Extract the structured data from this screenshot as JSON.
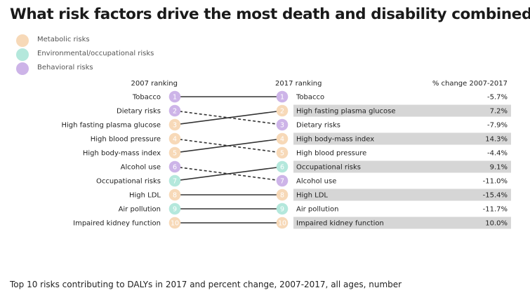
{
  "title": "What risk factors drive the most death and disability combined?",
  "subtitle": "Top 10 risks contributing to DALYs in 2017 and percent change, 2007-2017, all ages, number",
  "legend": [
    {
      "label": "Metabolic risks",
      "category": "metabolic"
    },
    {
      "label": "Environmental/occupational risks",
      "category": "environmental"
    },
    {
      "label": "Behavioral risks",
      "category": "behavioral"
    }
  ],
  "colors": {
    "metabolic": "#f7d9b8",
    "environmental": "#b4e8dc",
    "behavioral": "#cdb4e8",
    "highlight": "#d6d6d6",
    "line": "#333333"
  },
  "chart_data": {
    "type": "slope",
    "column_headers": {
      "left": "2007 ranking",
      "right": "2017 ranking",
      "change": "% change 2007-2017"
    },
    "left_ranking": [
      {
        "rank": 1,
        "label": "Tobacco",
        "category": "behavioral"
      },
      {
        "rank": 2,
        "label": "Dietary risks",
        "category": "behavioral"
      },
      {
        "rank": 3,
        "label": "High fasting plasma glucose",
        "category": "metabolic"
      },
      {
        "rank": 4,
        "label": "High blood pressure",
        "category": "metabolic"
      },
      {
        "rank": 5,
        "label": "High body-mass index",
        "category": "metabolic"
      },
      {
        "rank": 6,
        "label": "Alcohol use",
        "category": "behavioral"
      },
      {
        "rank": 7,
        "label": "Occupational risks",
        "category": "environmental"
      },
      {
        "rank": 8,
        "label": "High LDL",
        "category": "metabolic"
      },
      {
        "rank": 9,
        "label": "Air pollution",
        "category": "environmental"
      },
      {
        "rank": 10,
        "label": "Impaired kidney function",
        "category": "metabolic"
      }
    ],
    "right_ranking": [
      {
        "rank": 1,
        "label": "Tobacco",
        "category": "behavioral",
        "change": "-5.7%",
        "highlight": false
      },
      {
        "rank": 2,
        "label": "High fasting plasma glucose",
        "category": "metabolic",
        "change": "7.2%",
        "highlight": true
      },
      {
        "rank": 3,
        "label": "Dietary risks",
        "category": "behavioral",
        "change": "-7.9%",
        "highlight": false
      },
      {
        "rank": 4,
        "label": "High body-mass index",
        "category": "metabolic",
        "change": "14.3%",
        "highlight": true
      },
      {
        "rank": 5,
        "label": "High blood pressure",
        "category": "metabolic",
        "change": "-4.4%",
        "highlight": false
      },
      {
        "rank": 6,
        "label": "Occupational risks",
        "category": "environmental",
        "change": "9.1%",
        "highlight": true
      },
      {
        "rank": 7,
        "label": "Alcohol use",
        "category": "behavioral",
        "change": "-11.0%",
        "highlight": false
      },
      {
        "rank": 8,
        "label": "High LDL",
        "category": "metabolic",
        "change": "-15.4%",
        "highlight": true
      },
      {
        "rank": 9,
        "label": "Air pollution",
        "category": "environmental",
        "change": "-11.7%",
        "highlight": false
      },
      {
        "rank": 10,
        "label": "Impaired kidney function",
        "category": "metabolic",
        "change": "10.0%",
        "highlight": true
      }
    ],
    "connections": [
      {
        "label": "Tobacco",
        "from": 1,
        "to": 1,
        "style": "solid"
      },
      {
        "label": "Dietary risks",
        "from": 2,
        "to": 3,
        "style": "dashed"
      },
      {
        "label": "High fasting plasma glucose",
        "from": 3,
        "to": 2,
        "style": "solid"
      },
      {
        "label": "High blood pressure",
        "from": 4,
        "to": 5,
        "style": "dashed"
      },
      {
        "label": "High body-mass index",
        "from": 5,
        "to": 4,
        "style": "solid"
      },
      {
        "label": "Alcohol use",
        "from": 6,
        "to": 7,
        "style": "dashed"
      },
      {
        "label": "Occupational risks",
        "from": 7,
        "to": 6,
        "style": "solid"
      },
      {
        "label": "High LDL",
        "from": 8,
        "to": 8,
        "style": "solid"
      },
      {
        "label": "Air pollution",
        "from": 9,
        "to": 9,
        "style": "solid"
      },
      {
        "label": "Impaired kidney function",
        "from": 10,
        "to": 10,
        "style": "solid"
      }
    ]
  }
}
